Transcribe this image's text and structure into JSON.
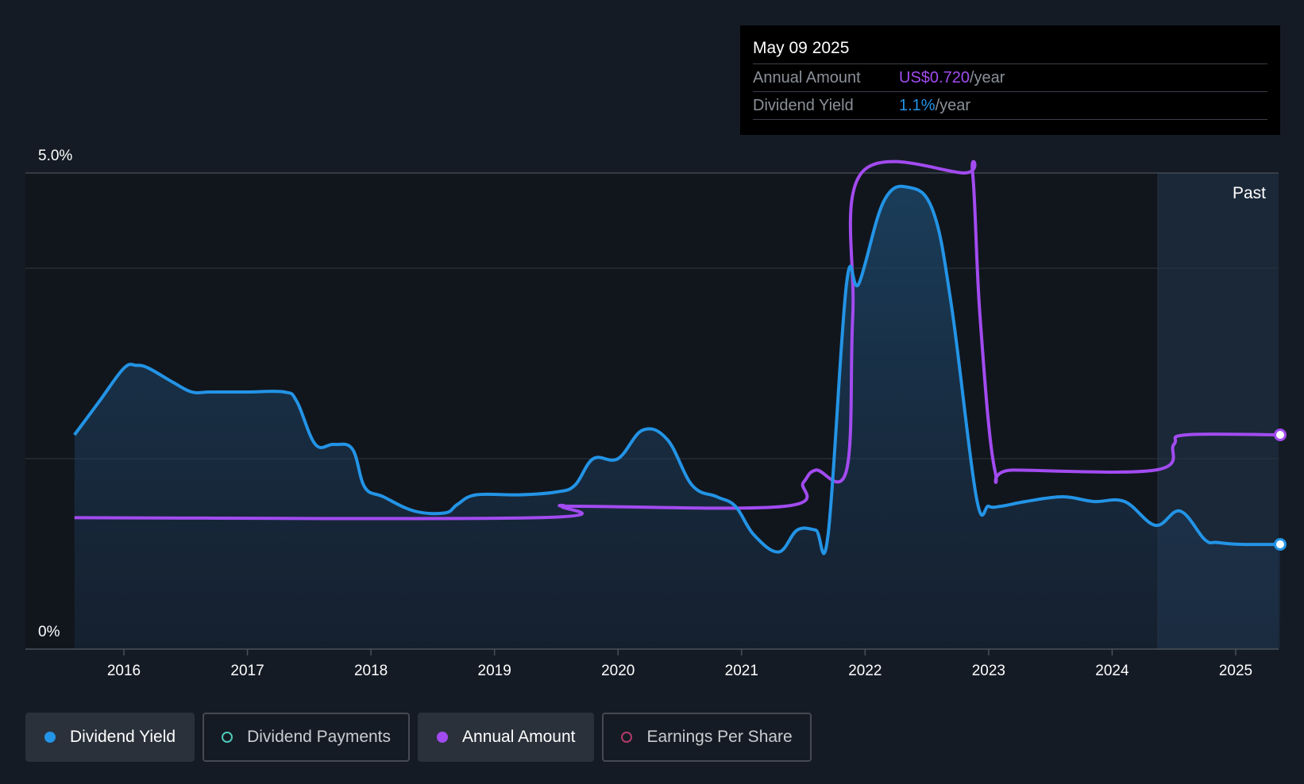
{
  "tooltip": {
    "date": "May 09 2025",
    "rows": [
      {
        "label": "Annual Amount",
        "value": "US$0.720",
        "unit": "/year"
      },
      {
        "label": "Dividend Yield",
        "value": "1.1%",
        "unit": "/year"
      }
    ]
  },
  "legend": [
    {
      "label": "Dividend Yield",
      "color": "#2394e6",
      "filled": true,
      "active": true
    },
    {
      "label": "Dividend Payments",
      "color": "#4fc9b9",
      "filled": false,
      "active": false
    },
    {
      "label": "Annual Amount",
      "color": "#a24bf0",
      "filled": true,
      "active": true
    },
    {
      "label": "Earnings Per Share",
      "color": "#b23a6a",
      "filled": false,
      "active": false
    }
  ],
  "colors": {
    "yield": "#2394e6",
    "annual": "#a24bf0",
    "background": "#151b24"
  },
  "chart_data": {
    "type": "line",
    "ylim": [
      0,
      5.0
    ],
    "xlim": [
      2015.6,
      2025.36
    ],
    "y_tick_labels": [
      "5.0%",
      "0%"
    ],
    "x_tick_labels": [
      "2016",
      "2017",
      "2018",
      "2019",
      "2020",
      "2021",
      "2022",
      "2023",
      "2024",
      "2025"
    ],
    "x_ticks": [
      2016,
      2017,
      2018,
      2019,
      2020,
      2021,
      2022,
      2023,
      2024,
      2025
    ],
    "gridlines": [
      5.0,
      4.0,
      2.0
    ],
    "past_start": 2024.37,
    "past_label": "Past",
    "series": [
      {
        "name": "Dividend Yield",
        "x": [
          2015.6,
          2015.8,
          2016.0,
          2016.1,
          2016.2,
          2016.4,
          2016.55,
          2016.7,
          2017.0,
          2017.3,
          2017.4,
          2017.55,
          2017.7,
          2017.85,
          2017.95,
          2018.1,
          2018.35,
          2018.6,
          2018.7,
          2018.85,
          2019.2,
          2019.5,
          2019.65,
          2019.8,
          2020.0,
          2020.2,
          2020.4,
          2020.6,
          2020.8,
          2020.95,
          2021.1,
          2021.3,
          2021.45,
          2021.6,
          2021.7,
          2021.85,
          2021.95,
          2022.15,
          2022.35,
          2022.55,
          2022.7,
          2022.9,
          2023.0,
          2023.1,
          2023.3,
          2023.6,
          2023.85,
          2024.1,
          2024.35,
          2024.55,
          2024.75,
          2024.85,
          2025.05,
          2025.36
        ],
        "y": [
          2.25,
          2.6,
          2.95,
          2.98,
          2.95,
          2.8,
          2.7,
          2.7,
          2.7,
          2.7,
          2.6,
          2.15,
          2.15,
          2.1,
          1.7,
          1.6,
          1.45,
          1.43,
          1.52,
          1.62,
          1.62,
          1.65,
          1.72,
          2.0,
          2.0,
          2.3,
          2.2,
          1.72,
          1.6,
          1.5,
          1.2,
          1.02,
          1.25,
          1.25,
          1.2,
          3.84,
          3.84,
          4.7,
          4.85,
          4.6,
          3.6,
          1.6,
          1.5,
          1.5,
          1.55,
          1.6,
          1.55,
          1.55,
          1.3,
          1.45,
          1.15,
          1.12,
          1.1,
          1.1
        ]
      },
      {
        "name": "Annual Amount",
        "x": [
          2015.6,
          2019.35,
          2019.55,
          2019.7,
          2021.35,
          2021.5,
          2021.6,
          2021.85,
          2021.9,
          2021.97,
          2022.8,
          2022.87,
          2022.93,
          2023.05,
          2023.2,
          2024.35,
          2024.5,
          2024.6,
          2025.36
        ],
        "y": [
          1.38,
          1.38,
          1.5,
          1.5,
          1.5,
          1.75,
          1.88,
          1.88,
          3.5,
          5.0,
          5.0,
          5.0,
          3.5,
          1.88,
          1.88,
          1.88,
          2.15,
          2.25,
          2.25
        ]
      }
    ],
    "end_markers": [
      {
        "series": "Annual Amount",
        "x": 2025.36,
        "y": 2.25
      },
      {
        "series": "Dividend Yield",
        "x": 2025.36,
        "y": 1.1
      }
    ]
  }
}
